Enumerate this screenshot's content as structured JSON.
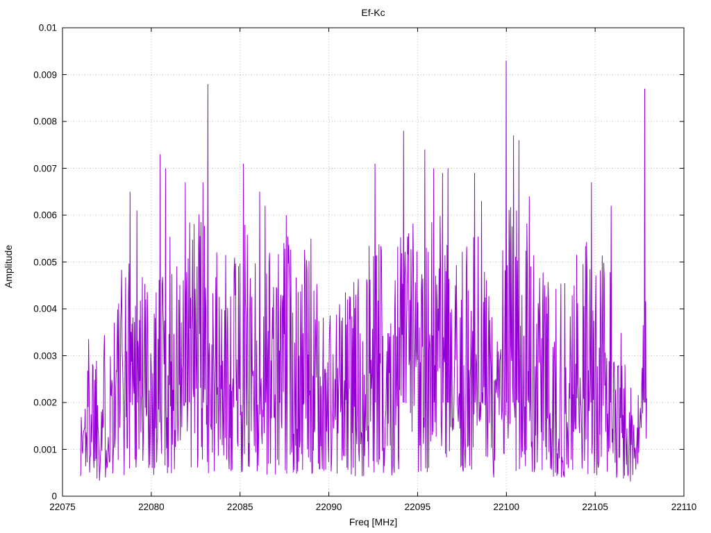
{
  "chart_data": {
    "type": "line",
    "title": "Ef-Kc",
    "xlabel": "Freq [MHz]",
    "ylabel": "Amplitude",
    "xlim": [
      22075,
      22110
    ],
    "ylim": [
      0,
      0.01
    ],
    "xticks": [
      22075,
      22080,
      22085,
      22090,
      22095,
      22100,
      22105,
      22110
    ],
    "xtick_labels": [
      "22075",
      "22080",
      "22085",
      "22090",
      "22095",
      "22100",
      "22105",
      "22110"
    ],
    "yticks": [
      0,
      0.001,
      0.002,
      0.003,
      0.004,
      0.005,
      0.006,
      0.007,
      0.008,
      0.009,
      0.01
    ],
    "ytick_labels": [
      "0",
      "0.001",
      "0.002",
      "0.003",
      "0.004",
      "0.005",
      "0.006",
      "0.007",
      "0.008",
      "0.009",
      "0.01"
    ],
    "grid": true,
    "legend": "none",
    "line_color": "#9400d3",
    "grid_color": "#b8b8b8",
    "border_color": "#000000",
    "data_x_range": [
      22076.0,
      22107.9
    ],
    "noise_floor": 0.00012,
    "n_points": 1150,
    "seed": 1337,
    "envelope": [
      [
        22076.0,
        0.0018
      ],
      [
        22076.6,
        0.004
      ],
      [
        22077.2,
        0.0032
      ],
      [
        22077.8,
        0.0043
      ],
      [
        22078.6,
        0.0052
      ],
      [
        22079.2,
        0.0058
      ],
      [
        22080.0,
        0.0044
      ],
      [
        22080.6,
        0.006
      ],
      [
        22081.5,
        0.005
      ],
      [
        22082.2,
        0.0062
      ],
      [
        22083.0,
        0.0058
      ],
      [
        22084.0,
        0.0048
      ],
      [
        22085.0,
        0.006
      ],
      [
        22086.0,
        0.0058
      ],
      [
        22087.0,
        0.0052
      ],
      [
        22087.8,
        0.0058
      ],
      [
        22088.8,
        0.0052
      ],
      [
        22089.6,
        0.004
      ],
      [
        22090.4,
        0.0042
      ],
      [
        22091.4,
        0.0046
      ],
      [
        22092.4,
        0.0056
      ],
      [
        22093.4,
        0.0052
      ],
      [
        22094.2,
        0.006
      ],
      [
        22095.2,
        0.0062
      ],
      [
        22096.2,
        0.006
      ],
      [
        22097.2,
        0.0048
      ],
      [
        22098.2,
        0.006
      ],
      [
        22099.2,
        0.0042
      ],
      [
        22100.2,
        0.0064
      ],
      [
        22101.2,
        0.0058
      ],
      [
        22102.2,
        0.0048
      ],
      [
        22103.2,
        0.0044
      ],
      [
        22104.4,
        0.0055
      ],
      [
        22105.2,
        0.0052
      ],
      [
        22106.0,
        0.0046
      ],
      [
        22106.6,
        0.003
      ],
      [
        22107.2,
        0.0024
      ],
      [
        22107.6,
        0.0022
      ],
      [
        22107.9,
        0.006
      ]
    ],
    "notable_peaks": [
      [
        22078.8,
        0.0065
      ],
      [
        22079.2,
        0.0061
      ],
      [
        22080.5,
        0.0073
      ],
      [
        22080.8,
        0.007
      ],
      [
        22081.9,
        0.0067
      ],
      [
        22082.9,
        0.0067
      ],
      [
        22083.2,
        0.0088
      ],
      [
        22085.2,
        0.0071
      ],
      [
        22086.1,
        0.0065
      ],
      [
        22086.4,
        0.0062
      ],
      [
        22087.6,
        0.006
      ],
      [
        22089.0,
        0.0055
      ],
      [
        22092.6,
        0.0071
      ],
      [
        22094.2,
        0.0078
      ],
      [
        22095.4,
        0.0074
      ],
      [
        22095.9,
        0.007
      ],
      [
        22096.4,
        0.0069
      ],
      [
        22096.7,
        0.007
      ],
      [
        22098.2,
        0.0069
      ],
      [
        22098.6,
        0.0063
      ],
      [
        22100.0,
        0.0093
      ],
      [
        22100.4,
        0.0077
      ],
      [
        22100.7,
        0.0076
      ],
      [
        22101.3,
        0.0064
      ],
      [
        22104.8,
        0.0067
      ],
      [
        22105.9,
        0.0062
      ],
      [
        22107.8,
        0.0087
      ]
    ]
  }
}
